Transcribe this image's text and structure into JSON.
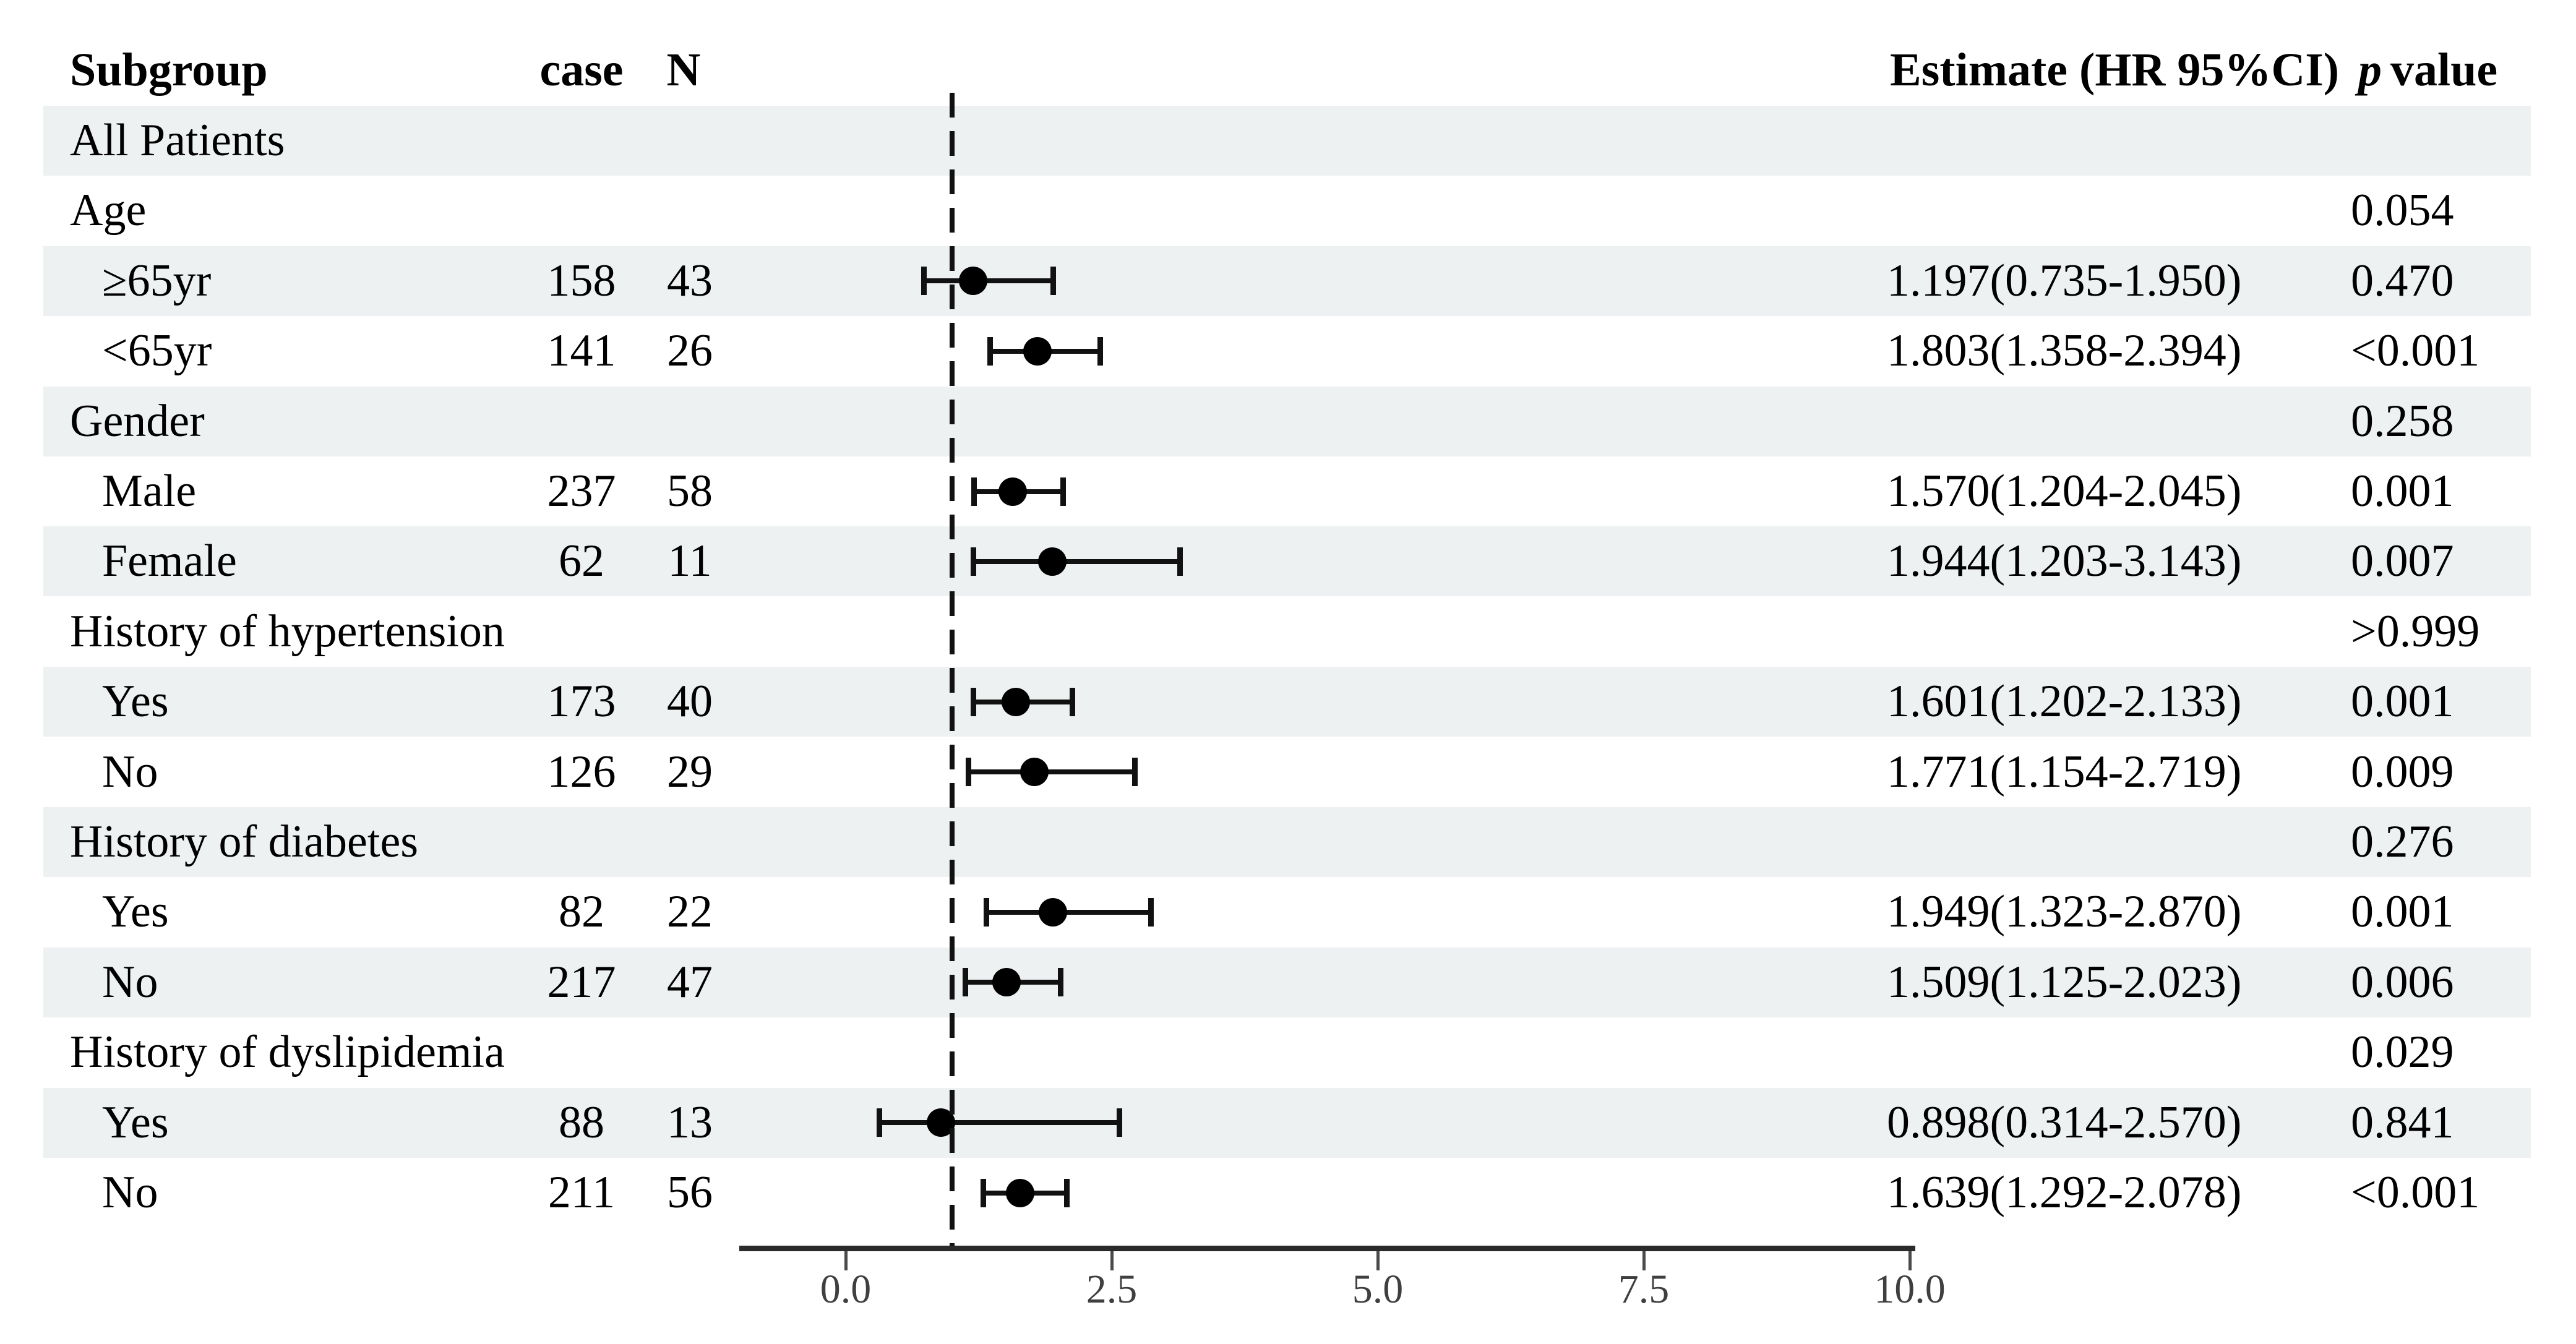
{
  "header": {
    "subgroup": "Subgroup",
    "case": "case",
    "n": "N",
    "estimate": "Estimate (HR 95%CI)",
    "p_symbol": "p",
    "p_word": "value"
  },
  "axis": {
    "tick_labels": [
      "0.0",
      "2.5",
      "5.0",
      "7.5",
      "10.0"
    ],
    "tick_values": [
      0,
      2.5,
      5,
      7.5,
      10
    ]
  },
  "colors": {
    "band": "#edf1f1",
    "text": "#000000",
    "marker": "#000000",
    "ci": "#111111",
    "reference_line": "#111111",
    "axis_line": "#2b2b2b",
    "tick": "#4a4a4a",
    "tick_label": "#3f3f3f"
  },
  "chart_data": {
    "type": "scatter",
    "subtype": "forest_plot_hazard_ratio",
    "title": "",
    "xlabel": "",
    "xlim": [
      -1.0,
      10.05
    ],
    "x_ticks": [
      0.0,
      2.5,
      5.0,
      7.5,
      10.0
    ],
    "reference_line_x": 1.0,
    "grid": false,
    "legend": "none",
    "columns": [
      "Subgroup",
      "case",
      "N",
      "Estimate (HR 95%CI)",
      "p value"
    ],
    "rows": [
      {
        "label": "All Patients",
        "level": 0,
        "shaded": true,
        "case": "",
        "n": "",
        "estimate": "",
        "p": "",
        "hr": null,
        "ci": null
      },
      {
        "label": "Age",
        "level": 0,
        "shaded": false,
        "case": "",
        "n": "",
        "estimate": "",
        "p": "0.054",
        "hr": null,
        "ci": null
      },
      {
        "label": "≥65yr",
        "level": 1,
        "shaded": true,
        "case": "158",
        "n": "43",
        "estimate": "1.197(0.735-1.950)",
        "p": "0.470",
        "hr": 1.197,
        "ci": [
          0.735,
          1.95
        ]
      },
      {
        "label": "<65yr",
        "level": 1,
        "shaded": false,
        "case": "141",
        "n": "26",
        "estimate": "1.803(1.358-2.394)",
        "p": "<0.001",
        "hr": 1.803,
        "ci": [
          1.358,
          2.394
        ]
      },
      {
        "label": "Gender",
        "level": 0,
        "shaded": true,
        "case": "",
        "n": "",
        "estimate": "",
        "p": "0.258",
        "hr": null,
        "ci": null
      },
      {
        "label": "Male",
        "level": 1,
        "shaded": false,
        "case": "237",
        "n": "58",
        "estimate": "1.570(1.204-2.045)",
        "p": "0.001",
        "hr": 1.57,
        "ci": [
          1.204,
          2.045
        ]
      },
      {
        "label": "Female",
        "level": 1,
        "shaded": true,
        "case": "62",
        "n": "11",
        "estimate": "1.944(1.203-3.143)",
        "p": "0.007",
        "hr": 1.944,
        "ci": [
          1.203,
          3.143
        ]
      },
      {
        "label": "History of hypertension",
        "level": 0,
        "shaded": false,
        "case": "",
        "n": "",
        "estimate": "",
        "p": ">0.999",
        "hr": null,
        "ci": null
      },
      {
        "label": "Yes",
        "level": 1,
        "shaded": true,
        "case": "173",
        "n": "40",
        "estimate": "1.601(1.202-2.133)",
        "p": "0.001",
        "hr": 1.601,
        "ci": [
          1.202,
          2.133
        ]
      },
      {
        "label": "No",
        "level": 1,
        "shaded": false,
        "case": "126",
        "n": "29",
        "estimate": "1.771(1.154-2.719)",
        "p": "0.009",
        "hr": 1.771,
        "ci": [
          1.154,
          2.719
        ]
      },
      {
        "label": "History of diabetes",
        "level": 0,
        "shaded": true,
        "case": "",
        "n": "",
        "estimate": "",
        "p": "0.276",
        "hr": null,
        "ci": null
      },
      {
        "label": "Yes",
        "level": 1,
        "shaded": false,
        "case": "82",
        "n": "22",
        "estimate": "1.949(1.323-2.870)",
        "p": "0.001",
        "hr": 1.949,
        "ci": [
          1.323,
          2.87
        ]
      },
      {
        "label": "No",
        "level": 1,
        "shaded": true,
        "case": "217",
        "n": "47",
        "estimate": "1.509(1.125-2.023)",
        "p": "0.006",
        "hr": 1.509,
        "ci": [
          1.125,
          2.023
        ]
      },
      {
        "label": "History of dyslipidemia",
        "level": 0,
        "shaded": false,
        "case": "",
        "n": "",
        "estimate": "",
        "p": "0.029",
        "hr": null,
        "ci": null
      },
      {
        "label": "Yes",
        "level": 1,
        "shaded": true,
        "case": "88",
        "n": "13",
        "estimate": "0.898(0.314-2.570)",
        "p": "0.841",
        "hr": 0.898,
        "ci": [
          0.314,
          2.57
        ]
      },
      {
        "label": "No",
        "level": 1,
        "shaded": false,
        "case": "211",
        "n": "56",
        "estimate": "1.639(1.292-2.078)",
        "p": "<0.001",
        "hr": 1.639,
        "ci": [
          1.292,
          2.078
        ]
      }
    ]
  }
}
